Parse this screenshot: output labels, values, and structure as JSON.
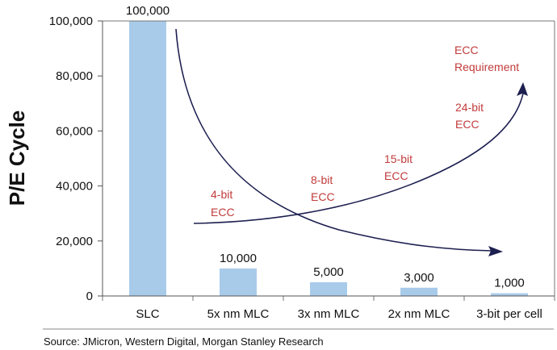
{
  "chart_data": {
    "type": "bar",
    "title": "",
    "xlabel": "",
    "ylabel": "P/E Cycle",
    "ylim": [
      0,
      100000
    ],
    "yticks": [
      "0",
      "20,000",
      "40,000",
      "60,000",
      "80,000",
      "100,000"
    ],
    "ytick_values": [
      0,
      20000,
      40000,
      60000,
      80000,
      100000
    ],
    "categories": [
      "SLC",
      "5x nm MLC",
      "3x nm MLC",
      "2x nm MLC",
      "3-bit per cell"
    ],
    "values": [
      100000,
      10000,
      5000,
      3000,
      1000
    ],
    "value_labels": [
      "100,000",
      "10,000",
      "5,000",
      "3,000",
      "1,000"
    ],
    "bar_color": "#a9cbea",
    "annotation_color": "#c23b3b",
    "arrow_color": "#1c1f4f",
    "grid": false,
    "annotations": {
      "ecc_4": [
        "4-bit",
        "ECC"
      ],
      "ecc_8": [
        "8-bit",
        "ECC"
      ],
      "ecc_15": [
        "15-bit",
        "ECC"
      ],
      "ecc_24": [
        "24-bit",
        "ECC"
      ],
      "ecc_req": [
        "ECC",
        "Requirement"
      ]
    },
    "source": "Source: JMicron, Western Digital, Morgan Stanley Research"
  }
}
